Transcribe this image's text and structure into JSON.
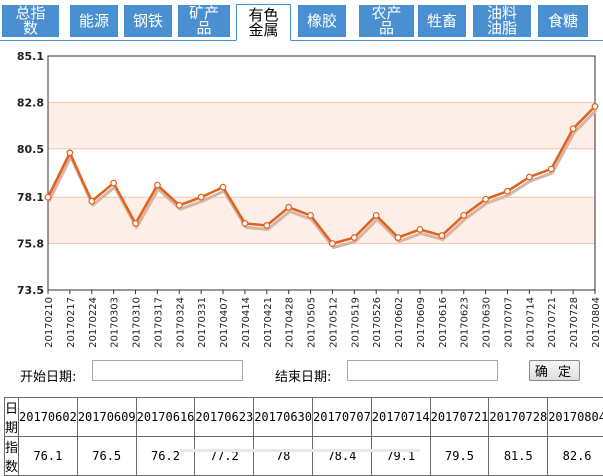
{
  "tabs": [
    {
      "label": "总指数",
      "active": false
    },
    {
      "label": "能源",
      "active": false
    },
    {
      "label": "钢铁",
      "active": false
    },
    {
      "label": "矿产品",
      "active": false
    },
    {
      "label": "有色金属",
      "active": true
    },
    {
      "label": "橡胶",
      "active": false
    },
    {
      "label": "农产品",
      "active": false
    },
    {
      "label": "牲畜",
      "active": false
    },
    {
      "label": "油料油脂",
      "active": false
    },
    {
      "label": "食糖",
      "active": false
    }
  ],
  "chart_data": {
    "type": "line",
    "title": "",
    "xlabel": "",
    "ylabel": "",
    "ylim": [
      73.5,
      85.1
    ],
    "yticks": [
      73.5,
      75.8,
      78.1,
      80.5,
      82.8,
      85.1
    ],
    "ytick_labels": [
      "73.5",
      "75.8",
      "78.1",
      "80.5",
      "82.8",
      "85.1"
    ],
    "bands": [
      [
        80.5,
        82.8
      ],
      [
        75.8,
        78.1
      ]
    ],
    "x": [
      "20170210",
      "20170217",
      "20170224",
      "20170303",
      "20170310",
      "20170317",
      "20170324",
      "20170331",
      "20170407",
      "20170414",
      "20170421",
      "20170428",
      "20170505",
      "20170512",
      "20170519",
      "20170526",
      "20170602",
      "20170609",
      "20170616",
      "20170623",
      "20170630",
      "20170707",
      "20170714",
      "20170721",
      "20170728",
      "20170804"
    ],
    "values": [
      78.1,
      80.3,
      77.9,
      78.8,
      76.8,
      78.7,
      77.7,
      78.1,
      78.6,
      76.8,
      76.7,
      77.6,
      77.2,
      75.8,
      76.1,
      77.2,
      76.1,
      76.5,
      76.2,
      77.2,
      78.0,
      78.4,
      79.1,
      79.5,
      81.5,
      82.6
    ],
    "colors": {
      "line": "#e0621e",
      "shadow": "#d9b3a3",
      "band": "#fdeee8",
      "grid": "#f5c5ad",
      "marker_fill": "#ffffff"
    }
  },
  "form": {
    "start_label": "开始日期:",
    "start_value": "",
    "end_label": "结束日期:",
    "end_value": "",
    "confirm_label": "确 定"
  },
  "table": {
    "date_header": "日期",
    "index_header": "指数",
    "dates": [
      "20170602",
      "20170609",
      "20170616",
      "20170623",
      "20170630",
      "20170707",
      "20170714",
      "20170721",
      "20170728",
      "20170804"
    ],
    "values": [
      "76.1",
      "76.5",
      "76.2",
      "77.2",
      "78",
      "78.4",
      "79.1",
      "79.5",
      "81.5",
      "82.6"
    ]
  }
}
